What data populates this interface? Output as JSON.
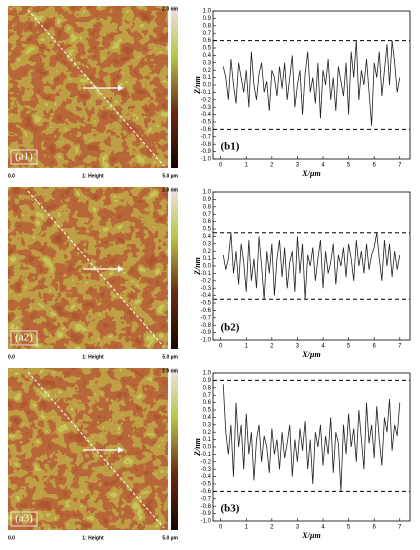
{
  "images": [
    {
      "label": "(a1)",
      "scale_max": "2.0 nm",
      "scale_min": "0.0",
      "channel": "1: Height",
      "size": "5.0 µm"
    },
    {
      "label": "(a2)",
      "scale_max": "2.0 nm",
      "scale_min": "0.0",
      "channel": "1: Height",
      "size": "5.0 µm"
    },
    {
      "label": "(a3)",
      "scale_max": "2.0 nm",
      "scale_min": "0.0",
      "channel": "1: Height",
      "size": "5.0 µm"
    }
  ],
  "chart_data": [
    {
      "type": "line",
      "label": "(b1)",
      "x_label": "X/µm",
      "y_label": "Z/nm",
      "color": "#222222",
      "x": [
        0.1,
        0.2,
        0.3,
        0.4,
        0.5,
        0.6,
        0.7,
        0.8,
        0.9,
        1.0,
        1.1,
        1.2,
        1.3,
        1.4,
        1.5,
        1.6,
        1.7,
        1.8,
        1.9,
        2.0,
        2.1,
        2.2,
        2.3,
        2.4,
        2.5,
        2.6,
        2.7,
        2.8,
        2.9,
        3.0,
        3.1,
        3.2,
        3.3,
        3.4,
        3.5,
        3.6,
        3.7,
        3.8,
        3.9,
        4.0,
        4.1,
        4.2,
        4.3,
        4.4,
        4.5,
        4.6,
        4.7,
        4.8,
        4.9,
        5.0,
        5.1,
        5.2,
        5.3,
        5.4,
        5.5,
        5.6,
        5.7,
        5.8,
        5.9,
        6.0,
        6.1,
        6.2,
        6.3,
        6.4,
        6.5,
        6.6,
        6.7,
        6.8,
        6.9,
        7.0
      ],
      "values": [
        0.25,
        0.1,
        -0.2,
        0.35,
        0.0,
        -0.25,
        0.3,
        0.1,
        -0.1,
        0.2,
        -0.3,
        0.45,
        0.0,
        -0.2,
        0.15,
        0.3,
        -0.1,
        0.05,
        -0.35,
        0.2,
        0.1,
        -0.15,
        0.25,
        -0.05,
        0.3,
        -0.2,
        0.1,
        0.4,
        -0.3,
        0.0,
        0.2,
        -0.4,
        0.15,
        0.45,
        -0.1,
        0.1,
        -0.25,
        0.3,
        -0.45,
        0.2,
        0.0,
        0.35,
        -0.2,
        0.1,
        -0.35,
        0.25,
        0.05,
        -0.15,
        0.3,
        -0.4,
        0.45,
        0.1,
        0.6,
        -0.2,
        0.2,
        0.0,
        0.35,
        -0.1,
        -0.55,
        0.3,
        0.1,
        0.45,
        -0.15,
        0.2,
        0.55,
        0.0,
        0.6,
        0.3,
        -0.1,
        0.1
      ],
      "hlines": [
        0.6,
        -0.6
      ],
      "xlim": [
        -0.3,
        7.4
      ],
      "xticks": [
        0,
        1,
        2,
        3,
        4,
        5,
        6,
        7
      ],
      "ylim": [
        -1,
        1
      ],
      "yticks": [
        {
          "value": 1,
          "label": "1.0"
        },
        0.9,
        0.8,
        0.7,
        0.6,
        0.5,
        0.4,
        0.3,
        0.2,
        0.1,
        {
          "value": 0,
          "label": "0.0"
        },
        -0.1,
        -0.2,
        -0.3,
        -0.4,
        -0.5,
        -0.6,
        -0.7,
        -0.8,
        -0.9,
        {
          "value": -1,
          "label": "-1.0"
        }
      ]
    },
    {
      "type": "line",
      "label": "(b2)",
      "x_label": "X/µm",
      "y_label": "Z/nm",
      "color": "#222222",
      "x": [
        0.1,
        0.2,
        0.3,
        0.4,
        0.5,
        0.6,
        0.7,
        0.8,
        0.9,
        1.0,
        1.1,
        1.2,
        1.3,
        1.4,
        1.5,
        1.6,
        1.7,
        1.8,
        1.9,
        2.0,
        2.1,
        2.2,
        2.3,
        2.4,
        2.5,
        2.6,
        2.7,
        2.8,
        2.9,
        3.0,
        3.1,
        3.2,
        3.3,
        3.4,
        3.5,
        3.6,
        3.7,
        3.8,
        3.9,
        4.0,
        4.1,
        4.2,
        4.3,
        4.4,
        4.5,
        4.6,
        4.7,
        4.8,
        4.9,
        5.0,
        5.1,
        5.2,
        5.3,
        5.4,
        5.5,
        5.6,
        5.7,
        5.8,
        5.9,
        6.0,
        6.1,
        6.2,
        6.3,
        6.4,
        6.5,
        6.6,
        6.7,
        6.8,
        6.9,
        7.0
      ],
      "values": [
        0.15,
        -0.05,
        0.1,
        0.45,
        -0.1,
        0.2,
        -0.25,
        0.3,
        0.05,
        -0.35,
        0.35,
        -0.2,
        0.1,
        -0.3,
        0.4,
        0.0,
        -0.45,
        0.2,
        -0.1,
        0.3,
        -0.4,
        0.1,
        0.35,
        -0.15,
        0.25,
        -0.3,
        0.05,
        0.2,
        -0.35,
        0.4,
        -0.1,
        0.3,
        -0.45,
        0.15,
        0.0,
        0.25,
        -0.2,
        0.1,
        0.35,
        -0.3,
        0.2,
        -0.1,
        0.05,
        0.3,
        -0.25,
        0.15,
        0.0,
        0.25,
        -0.15,
        0.3,
        0.1,
        -0.2,
        0.35,
        0.0,
        0.2,
        -0.1,
        0.3,
        -0.05,
        0.15,
        0.25,
        0.45,
        0.1,
        -0.2,
        0.35,
        0.0,
        0.3,
        -0.15,
        0.2,
        -0.05,
        0.15
      ],
      "hlines": [
        0.45,
        -0.45
      ],
      "xlim": [
        -0.3,
        7.4
      ],
      "xticks": [
        0,
        1,
        2,
        3,
        4,
        5,
        6,
        7
      ],
      "ylim": [
        -1,
        1
      ],
      "yticks": [
        {
          "value": 1,
          "label": "1.0"
        },
        0.9,
        0.8,
        0.7,
        0.6,
        0.5,
        0.4,
        0.3,
        0.2,
        0.1,
        {
          "value": 0,
          "label": "0.0"
        },
        -0.1,
        -0.2,
        -0.3,
        -0.4,
        -0.5,
        -0.6,
        -0.7,
        -0.8,
        -0.9,
        {
          "value": -1,
          "label": "-1.0"
        }
      ]
    },
    {
      "type": "line",
      "label": "(b3)",
      "x_label": "X/µm",
      "y_label": "Z/nm",
      "color": "#222222",
      "x": [
        0.1,
        0.2,
        0.3,
        0.4,
        0.5,
        0.6,
        0.7,
        0.8,
        0.9,
        1.0,
        1.1,
        1.2,
        1.3,
        1.4,
        1.5,
        1.6,
        1.7,
        1.8,
        1.9,
        2.0,
        2.1,
        2.2,
        2.3,
        2.4,
        2.5,
        2.6,
        2.7,
        2.8,
        2.9,
        3.0,
        3.1,
        3.2,
        3.3,
        3.4,
        3.5,
        3.6,
        3.7,
        3.8,
        3.9,
        4.0,
        4.1,
        4.2,
        4.3,
        4.4,
        4.5,
        4.6,
        4.7,
        4.8,
        4.9,
        5.0,
        5.1,
        5.2,
        5.3,
        5.4,
        5.5,
        5.6,
        5.7,
        5.8,
        5.9,
        6.0,
        6.1,
        6.2,
        6.3,
        6.4,
        6.5,
        6.6,
        6.7,
        6.8,
        6.9,
        7.0
      ],
      "values": [
        0.85,
        0.2,
        -0.1,
        0.3,
        -0.4,
        0.6,
        0.0,
        0.3,
        -0.3,
        0.45,
        -0.1,
        0.2,
        -0.45,
        0.1,
        0.3,
        -0.2,
        0.15,
        0.0,
        -0.35,
        0.25,
        -0.1,
        0.1,
        -0.3,
        0.2,
        -0.15,
        0.05,
        0.3,
        -0.4,
        0.1,
        -0.2,
        0.25,
        -0.05,
        0.35,
        -0.3,
        0.1,
        -0.5,
        0.2,
        0.0,
        0.3,
        -0.25,
        0.15,
        -0.1,
        0.4,
        -0.35,
        0.2,
        0.05,
        -0.6,
        0.3,
        -0.1,
        0.45,
        0.0,
        0.25,
        -0.2,
        0.5,
        0.1,
        -0.3,
        0.6,
        0.05,
        0.3,
        -0.15,
        0.55,
        0.1,
        -0.25,
        0.4,
        0.2,
        0.65,
        -0.05,
        0.3,
        0.15,
        0.6
      ],
      "hlines": [
        0.9,
        -0.6
      ],
      "xlim": [
        -0.3,
        7.4
      ],
      "xticks": [
        0,
        1,
        2,
        3,
        4,
        5,
        6,
        7
      ],
      "ylim": [
        -1,
        1
      ],
      "yticks": [
        {
          "value": 1,
          "label": "1.0"
        },
        0.9,
        0.8,
        0.7,
        0.6,
        0.5,
        0.4,
        0.3,
        0.2,
        0.1,
        {
          "value": 0,
          "label": "0.0"
        },
        -0.1,
        -0.2,
        -0.3,
        -0.4,
        -0.5,
        -0.6,
        -0.7,
        -0.8,
        -0.9,
        {
          "value": -1,
          "label": "-1.0"
        }
      ]
    }
  ]
}
